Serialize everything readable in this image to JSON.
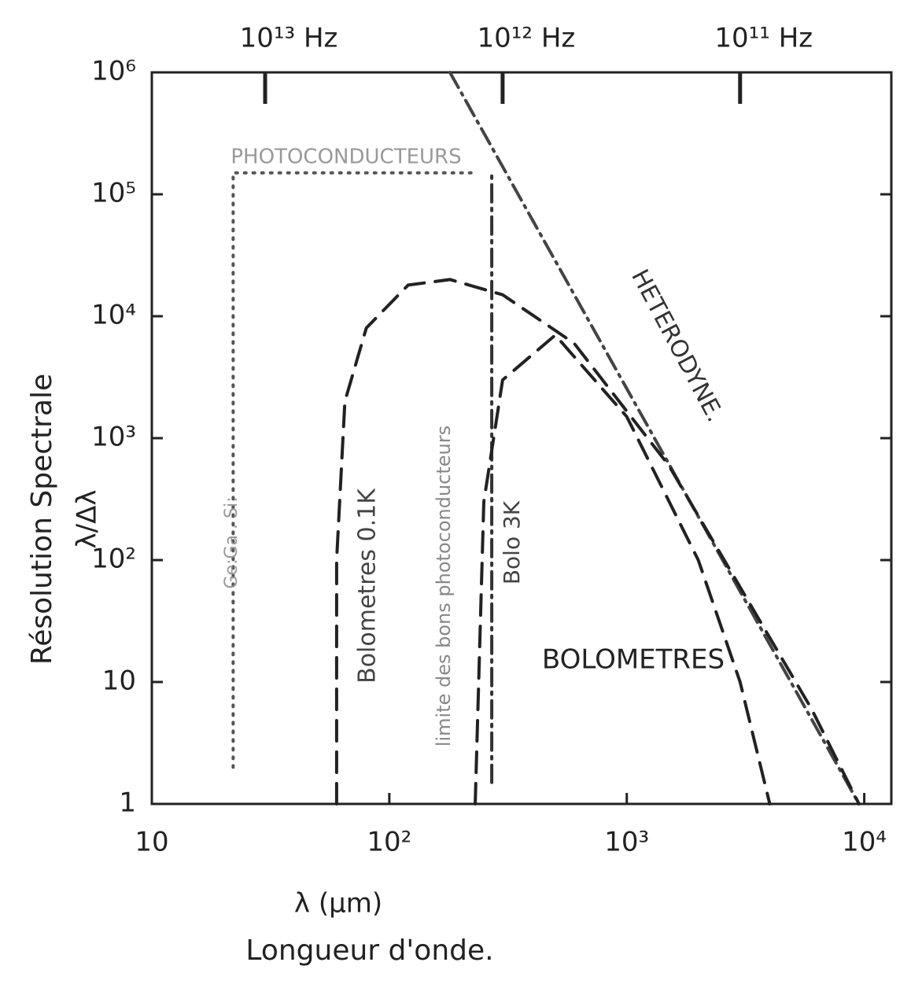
{
  "chart_data": {
    "type": "line",
    "xscale": "log",
    "yscale": "log",
    "xlim": [
      10,
      13000
    ],
    "ylim": [
      1,
      1000000
    ],
    "xticks": [
      {
        "value": 10,
        "label": "10"
      },
      {
        "value": 100,
        "label": "10²"
      },
      {
        "value": 1000,
        "label": "10³"
      },
      {
        "value": 10000,
        "label": "10⁴"
      }
    ],
    "yticks": [
      1,
      10,
      {
        "value": 100,
        "label": "10²"
      },
      {
        "value": 1000,
        "label": "10³"
      },
      {
        "value": 10000,
        "label": "10⁴"
      },
      {
        "value": 100000,
        "label": "10⁵"
      },
      {
        "value": 1000000,
        "label": "10⁶"
      }
    ],
    "x2ticks": [
      {
        "value": 30,
        "label": "10¹³ Hz"
      },
      {
        "value": 300,
        "label": "10¹² Hz"
      },
      {
        "value": 3000,
        "label": "10¹¹ Hz"
      }
    ],
    "xlabel": "λ (µm)",
    "xlabel_sub": "Longueur d'onde.",
    "ylabel": "Résolution Spectrale",
    "ylabel_sub": "λ/Δλ",
    "series": [
      {
        "style": "dotted",
        "color": "#555555",
        "x": [
          22,
          22,
          230
        ],
        "values": [
          2,
          150000,
          150000
        ]
      },
      {
        "style": "dashdot",
        "color": "#333333",
        "x": [
          270,
          270
        ],
        "values": [
          1.5,
          150000
        ]
      },
      {
        "style": "dashdot",
        "color": "#444444",
        "x": [
          180,
          9500
        ],
        "values": [
          1000000,
          1
        ]
      },
      {
        "style": "dashed",
        "color": "#222222",
        "x": [
          60,
          60,
          65,
          80,
          120,
          180,
          300,
          600,
          1500,
          3000,
          6000,
          9500
        ],
        "values": [
          1,
          100,
          2000,
          8000,
          18000,
          20000,
          15000,
          6000,
          600,
          60,
          6,
          1
        ]
      },
      {
        "style": "dashed",
        "color": "#222222",
        "x": [
          230,
          250,
          300,
          500,
          1000,
          2000,
          3000,
          4000
        ],
        "values": [
          1,
          300,
          3000,
          7000,
          1500,
          100,
          10,
          1
        ]
      }
    ],
    "annotations": [
      "PHOTOCONDUCTEURS",
      "HETERODYNE.",
      "BOLOMETRES",
      "Bolometres 0.1K",
      "Bolo 3K",
      "limite des bons photoconducteurs",
      "Ge:Ga . Si:"
    ]
  }
}
